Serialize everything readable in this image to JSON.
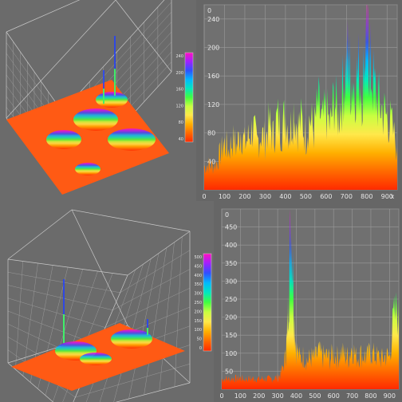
{
  "colors": {
    "background": "#6b6b6b",
    "grid": "#9a9a9a",
    "colormap": [
      "#ff2a00",
      "#ff6a00",
      "#ffb000",
      "#ffe84a",
      "#c8ff40",
      "#40ff40",
      "#00e8c0",
      "#00b8ff",
      "#3050ff",
      "#a020ff",
      "#ff10c0"
    ]
  },
  "chart_data": [
    {
      "type": "surface3d",
      "panel": "top-left",
      "colorbar_ticks": [
        "240",
        "200",
        "160",
        "120",
        "80",
        "40"
      ],
      "peak_value": 240
    },
    {
      "type": "area",
      "panel": "top-right",
      "xlim": [
        0,
        950
      ],
      "ylim": [
        0,
        260
      ],
      "x_ticks": [
        "0",
        "100",
        "200",
        "300",
        "400",
        "500",
        "600",
        "700",
        "800",
        "900"
      ],
      "y_ticks": [
        "40",
        "80",
        "120",
        "160",
        "200",
        "240"
      ],
      "y_corner_label": "0",
      "x_end_label": "x",
      "series": [
        {
          "x": [
            0,
            20,
            40,
            60,
            80,
            100,
            120,
            140,
            160,
            180,
            200,
            220,
            240,
            260,
            280,
            300,
            320,
            340,
            360,
            380,
            400,
            420,
            440,
            460,
            480,
            500,
            520,
            540,
            560,
            580,
            600,
            620,
            640,
            660,
            680,
            700,
            710,
            720,
            740,
            760,
            780,
            790,
            800,
            810,
            820,
            840,
            860,
            880,
            900,
            920,
            950
          ],
          "y": [
            35,
            38,
            36,
            40,
            55,
            70,
            60,
            75,
            65,
            90,
            70,
            80,
            95,
            70,
            85,
            75,
            100,
            80,
            110,
            90,
            115,
            85,
            120,
            95,
            105,
            80,
            110,
            90,
            130,
            100,
            120,
            95,
            140,
            110,
            150,
            190,
            200,
            170,
            160,
            180,
            150,
            215,
            235,
            210,
            180,
            150,
            130,
            120,
            110,
            100,
            60
          ]
        }
      ]
    },
    {
      "type": "surface3d",
      "panel": "bottom-left",
      "colorbar_ticks": [
        "500",
        "450",
        "400",
        "350",
        "300",
        "250",
        "200",
        "150",
        "100",
        "50",
        "0"
      ],
      "peak_value": 500
    },
    {
      "type": "area",
      "panel": "bottom-right",
      "xlim": [
        0,
        950
      ],
      "ylim": [
        0,
        500
      ],
      "x_ticks": [
        "0",
        "100",
        "200",
        "300",
        "400",
        "500",
        "600",
        "700",
        "800",
        "900"
      ],
      "y_ticks": [
        "50",
        "100",
        "150",
        "200",
        "250",
        "300",
        "350",
        "400",
        "450"
      ],
      "y_corner_label": "0",
      "series": [
        {
          "x": [
            0,
            20,
            40,
            60,
            80,
            100,
            120,
            140,
            160,
            180,
            200,
            220,
            240,
            260,
            280,
            300,
            320,
            340,
            350,
            360,
            370,
            380,
            390,
            400,
            420,
            440,
            460,
            480,
            500,
            520,
            540,
            560,
            580,
            600,
            620,
            640,
            660,
            680,
            700,
            720,
            740,
            760,
            780,
            800,
            820,
            840,
            860,
            880,
            900,
            920,
            950
          ],
          "y": [
            30,
            32,
            30,
            33,
            31,
            34,
            30,
            32,
            31,
            33,
            30,
            32,
            31,
            30,
            33,
            35,
            50,
            90,
            150,
            300,
            500,
            420,
            200,
            120,
            90,
            100,
            85,
            95,
            90,
            110,
            95,
            100,
            90,
            105,
            95,
            110,
            100,
            95,
            130,
            95,
            105,
            100,
            95,
            110,
            100,
            95,
            90,
            100,
            95,
            200,
            250
          ]
        }
      ]
    }
  ]
}
